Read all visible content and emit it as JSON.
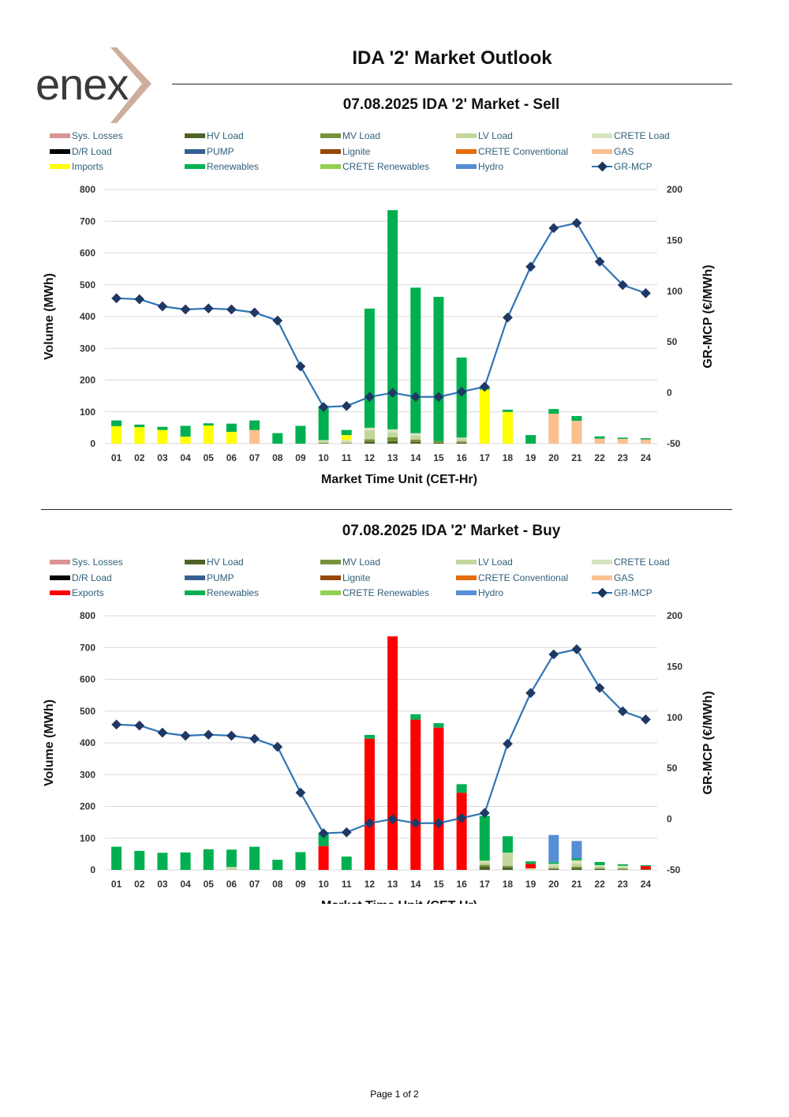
{
  "header": {
    "logo_text": "enex",
    "title": "IDA '2' Market Outlook"
  },
  "footer": {
    "page_label": "Page 1 of 2"
  },
  "chart_data": [
    {
      "id": "sell",
      "type": "bar",
      "stacked": true,
      "title": "07.08.2025  IDA '2' Market - Sell",
      "xlabel": "Market Time Unit (CET-Hr)",
      "ylabel": "Volume (MWh)",
      "y2label": "GR-MCP (€/MWh)",
      "ylim": [
        0,
        800
      ],
      "yticks": [
        0,
        100,
        200,
        300,
        400,
        500,
        600,
        700,
        800
      ],
      "y2lim": [
        -50,
        200
      ],
      "y2ticks": [
        -50,
        0,
        50,
        100,
        150,
        200
      ],
      "grid": true,
      "categories": [
        "01",
        "02",
        "03",
        "04",
        "05",
        "06",
        "07",
        "08",
        "09",
        "10",
        "11",
        "12",
        "13",
        "14",
        "15",
        "16",
        "17",
        "18",
        "19",
        "20",
        "21",
        "22",
        "23",
        "24"
      ],
      "legend": [
        {
          "name": "Sys. Losses",
          "color": "#d99594",
          "kind": "bar"
        },
        {
          "name": "HV Load",
          "color": "#4f6228",
          "kind": "bar"
        },
        {
          "name": "MV Load",
          "color": "#77933c",
          "kind": "bar"
        },
        {
          "name": "LV Load",
          "color": "#c3d69b",
          "kind": "bar"
        },
        {
          "name": "CRETE Load",
          "color": "#d7e4bd",
          "kind": "bar"
        },
        {
          "name": "D/R Load",
          "color": "#000000",
          "kind": "bar"
        },
        {
          "name": "PUMP",
          "color": "#366092",
          "kind": "bar"
        },
        {
          "name": "Lignite",
          "color": "#974706",
          "kind": "bar"
        },
        {
          "name": "CRETE Conventional",
          "color": "#e46c0a",
          "kind": "bar"
        },
        {
          "name": "GAS",
          "color": "#fac090",
          "kind": "bar"
        },
        {
          "name": "Imports",
          "color": "#ffff00",
          "kind": "bar"
        },
        {
          "name": "Renewables",
          "color": "#00b050",
          "kind": "bar"
        },
        {
          "name": "CRETE Renewables",
          "color": "#92d050",
          "kind": "bar"
        },
        {
          "name": "Hydro",
          "color": "#558ed5",
          "kind": "bar"
        },
        {
          "name": "GR-MCP",
          "color": "#17375e",
          "kind": "line"
        }
      ],
      "series": [
        {
          "name": "HV Load",
          "color": "#4f6228",
          "values": [
            0,
            0,
            0,
            0,
            0,
            0,
            0,
            0,
            0,
            0,
            0,
            6,
            8,
            5,
            3,
            3,
            0,
            0,
            0,
            0,
            0,
            0,
            0,
            0
          ]
        },
        {
          "name": "MV Load",
          "color": "#77933c",
          "values": [
            0,
            0,
            0,
            0,
            0,
            0,
            0,
            0,
            0,
            3,
            2,
            8,
            12,
            8,
            5,
            4,
            0,
            0,
            0,
            0,
            0,
            0,
            0,
            0
          ]
        },
        {
          "name": "LV Load",
          "color": "#c3d69b",
          "values": [
            0,
            0,
            0,
            0,
            0,
            0,
            0,
            0,
            0,
            5,
            5,
            28,
            15,
            12,
            0,
            8,
            0,
            0,
            0,
            0,
            0,
            0,
            0,
            0
          ]
        },
        {
          "name": "CRETE Load",
          "color": "#d7e4bd",
          "values": [
            0,
            0,
            0,
            0,
            0,
            0,
            0,
            0,
            0,
            3,
            5,
            8,
            10,
            8,
            0,
            4,
            0,
            0,
            0,
            0,
            0,
            0,
            0,
            0
          ]
        },
        {
          "name": "GAS",
          "color": "#fac090",
          "values": [
            0,
            0,
            0,
            0,
            0,
            0,
            43,
            0,
            0,
            0,
            0,
            0,
            0,
            0,
            0,
            0,
            0,
            0,
            0,
            94,
            72,
            16,
            15,
            13
          ]
        },
        {
          "name": "Imports",
          "color": "#ffff00",
          "values": [
            55,
            52,
            43,
            22,
            57,
            37,
            0,
            0,
            0,
            0,
            15,
            0,
            0,
            0,
            0,
            0,
            170,
            100,
            0,
            0,
            0,
            0,
            0,
            0
          ]
        },
        {
          "name": "Renewables",
          "color": "#00b050",
          "values": [
            18,
            8,
            10,
            34,
            7,
            26,
            30,
            33,
            56,
            107,
            16,
            375,
            690,
            458,
            454,
            252,
            10,
            7,
            27,
            15,
            15,
            7,
            4,
            4
          ]
        }
      ],
      "mcp": {
        "name": "GR-MCP",
        "color": "#2e75b6",
        "marker_color": "#1f3864",
        "values": [
          93,
          92,
          85,
          82,
          83,
          82,
          79,
          71,
          26,
          -14,
          -13,
          -4,
          0,
          -4,
          -4,
          1,
          6,
          74,
          124,
          162,
          167,
          129,
          106,
          98
        ]
      }
    },
    {
      "id": "buy",
      "type": "bar",
      "stacked": true,
      "title": "07.08.2025  IDA '2' Market - Buy",
      "xlabel": "Market Time Unit (CET-Hr)",
      "ylabel": "Volume (MWh)",
      "y2label": "GR-MCP (€/MWh)",
      "ylim": [
        0,
        800
      ],
      "yticks": [
        0,
        100,
        200,
        300,
        400,
        500,
        600,
        700,
        800
      ],
      "y2lim": [
        -50,
        200
      ],
      "y2ticks": [
        -50,
        0,
        50,
        100,
        150,
        200
      ],
      "grid": true,
      "categories": [
        "01",
        "02",
        "03",
        "04",
        "05",
        "06",
        "07",
        "08",
        "09",
        "10",
        "11",
        "12",
        "13",
        "14",
        "15",
        "16",
        "17",
        "18",
        "19",
        "20",
        "21",
        "22",
        "23",
        "24"
      ],
      "legend": [
        {
          "name": "Sys. Losses",
          "color": "#d99594",
          "kind": "bar"
        },
        {
          "name": "HV Load",
          "color": "#4f6228",
          "kind": "bar"
        },
        {
          "name": "MV Load",
          "color": "#77933c",
          "kind": "bar"
        },
        {
          "name": "LV Load",
          "color": "#c3d69b",
          "kind": "bar"
        },
        {
          "name": "CRETE Load",
          "color": "#d7e4bd",
          "kind": "bar"
        },
        {
          "name": "D/R Load",
          "color": "#000000",
          "kind": "bar"
        },
        {
          "name": "PUMP",
          "color": "#366092",
          "kind": "bar"
        },
        {
          "name": "Lignite",
          "color": "#974706",
          "kind": "bar"
        },
        {
          "name": "CRETE Conventional",
          "color": "#e46c0a",
          "kind": "bar"
        },
        {
          "name": "GAS",
          "color": "#fac090",
          "kind": "bar"
        },
        {
          "name": "Exports",
          "color": "#ff0000",
          "kind": "bar"
        },
        {
          "name": "Renewables",
          "color": "#00b050",
          "kind": "bar"
        },
        {
          "name": "CRETE Renewables",
          "color": "#92d050",
          "kind": "bar"
        },
        {
          "name": "Hydro",
          "color": "#558ed5",
          "kind": "bar"
        },
        {
          "name": "GR-MCP",
          "color": "#17375e",
          "kind": "line"
        }
      ],
      "series": [
        {
          "name": "HV Load",
          "color": "#4f6228",
          "values": [
            0,
            0,
            0,
            0,
            0,
            0,
            0,
            0,
            0,
            0,
            0,
            0,
            0,
            0,
            0,
            0,
            10,
            8,
            0,
            3,
            5,
            3,
            2,
            2
          ]
        },
        {
          "name": "MV Load",
          "color": "#77933c",
          "values": [
            0,
            0,
            0,
            0,
            0,
            0,
            0,
            0,
            0,
            0,
            0,
            0,
            0,
            0,
            0,
            0,
            6,
            5,
            0,
            3,
            5,
            3,
            2,
            0
          ]
        },
        {
          "name": "LV Load",
          "color": "#c3d69b",
          "values": [
            0,
            0,
            0,
            0,
            0,
            5,
            0,
            0,
            0,
            0,
            0,
            0,
            0,
            0,
            0,
            0,
            8,
            38,
            0,
            8,
            10,
            5,
            5,
            0
          ]
        },
        {
          "name": "CRETE Load",
          "color": "#d7e4bd",
          "values": [
            0,
            0,
            0,
            0,
            0,
            4,
            0,
            0,
            0,
            0,
            0,
            0,
            0,
            0,
            0,
            0,
            5,
            3,
            5,
            5,
            10,
            4,
            4,
            0
          ]
        },
        {
          "name": "Exports",
          "color": "#ff0000",
          "values": [
            0,
            0,
            0,
            0,
            0,
            0,
            0,
            0,
            0,
            75,
            0,
            413,
            735,
            473,
            448,
            243,
            0,
            0,
            14,
            0,
            0,
            0,
            0,
            10
          ]
        },
        {
          "name": "Renewables",
          "color": "#00b050",
          "values": [
            73,
            60,
            54,
            55,
            65,
            55,
            73,
            32,
            56,
            42,
            42,
            12,
            0,
            17,
            14,
            27,
            141,
            52,
            8,
            5,
            6,
            10,
            5,
            3
          ]
        },
        {
          "name": "Hydro",
          "color": "#558ed5",
          "values": [
            0,
            0,
            0,
            0,
            0,
            0,
            0,
            0,
            0,
            0,
            0,
            0,
            0,
            0,
            0,
            0,
            0,
            0,
            0,
            86,
            55,
            0,
            0,
            0
          ]
        }
      ],
      "mcp": {
        "name": "GR-MCP",
        "color": "#2e75b6",
        "marker_color": "#1f3864",
        "values": [
          93,
          92,
          85,
          82,
          83,
          82,
          79,
          71,
          26,
          -14,
          -13,
          -4,
          0,
          -4,
          -4,
          1,
          6,
          74,
          124,
          162,
          167,
          129,
          106,
          98
        ]
      }
    }
  ]
}
